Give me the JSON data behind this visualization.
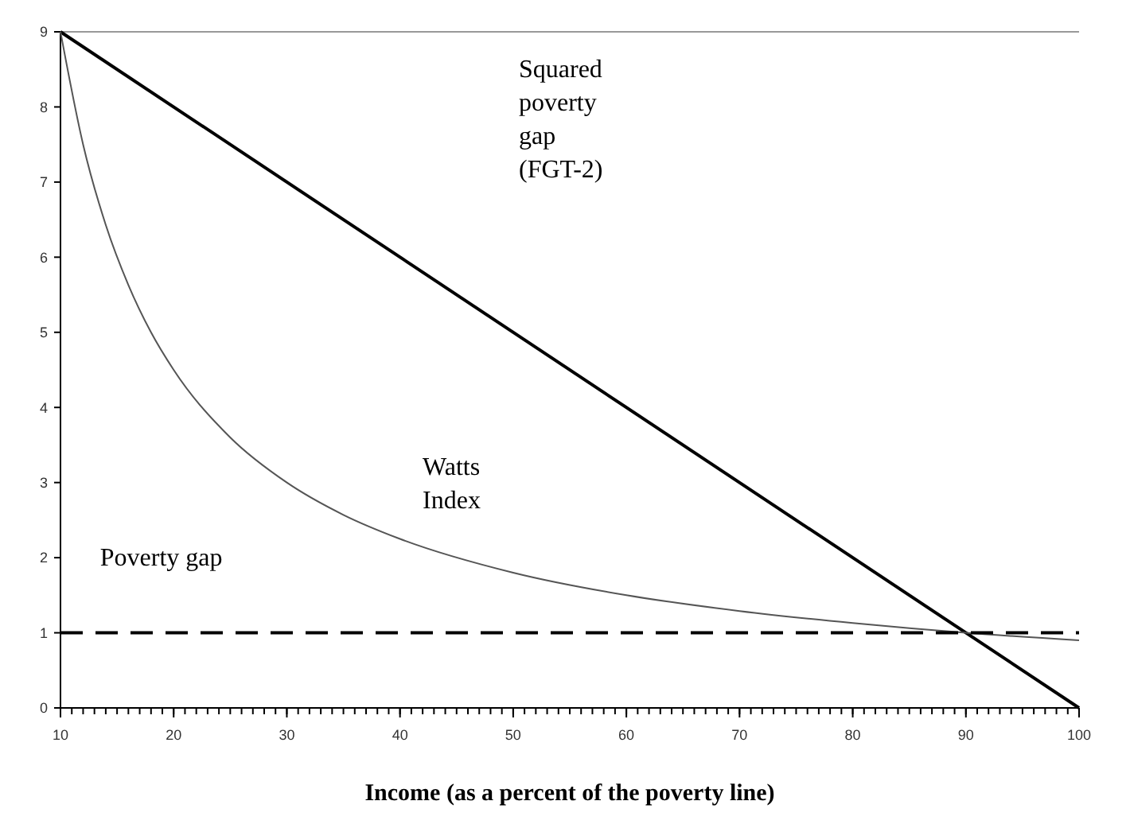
{
  "chart_data": {
    "type": "line",
    "xlabel": "Income (as a percent of the poverty line)",
    "xlim": [
      10,
      100
    ],
    "xticks": [
      10,
      20,
      30,
      40,
      50,
      60,
      70,
      80,
      90,
      100
    ],
    "ylim": [
      0,
      9
    ],
    "yticks": [
      0,
      1,
      2,
      3,
      4,
      5,
      6,
      7,
      8,
      9
    ],
    "grid": false,
    "marker": "none",
    "series": [
      {
        "color": "#000000",
        "x": [
          10,
          100
        ],
        "values": [
          9,
          0
        ],
        "line_style": "solid"
      },
      {
        "color": "#555555",
        "x": [
          10,
          12,
          14,
          16,
          18,
          20,
          25,
          30,
          35,
          40,
          50,
          60,
          70,
          80,
          90,
          100
        ],
        "values": [
          9,
          7.5,
          6.43,
          5.63,
          5,
          4.5,
          3.6,
          3,
          2.57,
          2.25,
          1.8,
          1.5,
          1.29,
          1.13,
          1,
          0.9
        ],
        "line_style": "solid"
      },
      {
        "color": "#000000",
        "x": [
          10,
          100
        ],
        "values": [
          1,
          1
        ],
        "line_style": "dashed"
      }
    ],
    "annotations": [
      "Squared poverty gap (FGT-2)",
      "Watts Index",
      "Poverty gap"
    ]
  }
}
